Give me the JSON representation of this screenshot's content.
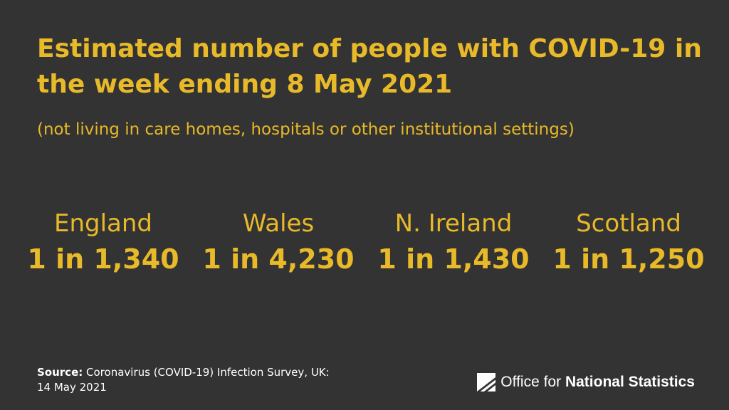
{
  "title": "Estimated number of people with COVID-19 in the week ending 8 May 2021",
  "subtitle": "(not living in care homes, hospitals or other institutional settings)",
  "stats": [
    {
      "name": "England",
      "value": "1 in 1,340"
    },
    {
      "name": "Wales",
      "value": "1 in 4,230"
    },
    {
      "name": "N. Ireland",
      "value": "1 in 1,430"
    },
    {
      "name": "Scotland",
      "value": "1 in 1,250"
    }
  ],
  "source": {
    "label": "Source:",
    "text": "Coronavirus (COVID-19) Infection Survey, UK:",
    "date": "14 May 2021"
  },
  "logo": {
    "icon": "ons-logo-icon",
    "text_regular": "Office for",
    "text_bold": "National Statistics"
  },
  "colors": {
    "background": "#333333",
    "accent": "#e8b928",
    "text": "#ffffff"
  }
}
